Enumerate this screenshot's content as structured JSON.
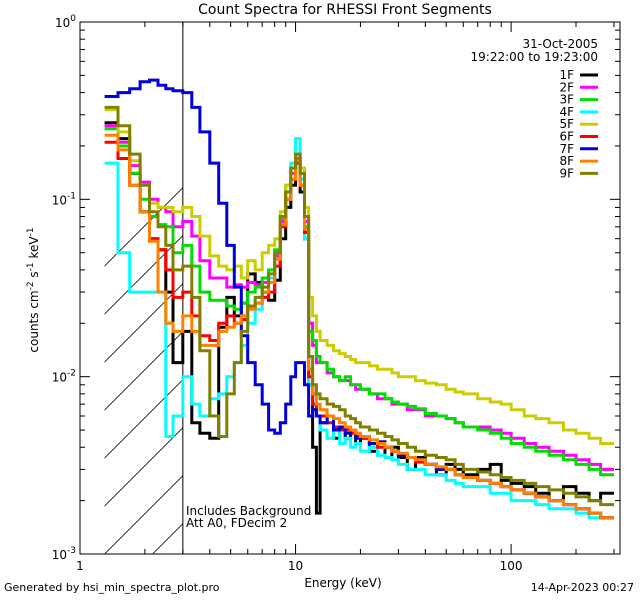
{
  "chart_data": {
    "type": "line",
    "title": "Count Spectra for RHESSI Front Segments",
    "xlabel": "Energy (keV)",
    "ylabel_base": "counts cm",
    "ylabel_exp1": "-2",
    "ylabel_mid": " s",
    "ylabel_exp2": "-1",
    "ylabel_unit": " keV",
    "ylabel_exp3": "-1",
    "xscale": "log",
    "yscale": "log",
    "xlim": [
      1,
      320
    ],
    "ylim": [
      0.001,
      1
    ],
    "x_ticks": [
      {
        "value": 1,
        "label": "1"
      },
      {
        "value": 10,
        "label": "10"
      },
      {
        "value": 100,
        "label": "100"
      }
    ],
    "y_ticks": [
      {
        "value": 1,
        "base": "10",
        "exp": "0"
      },
      {
        "value": 0.1,
        "base": "10",
        "exp": "-1"
      },
      {
        "value": 0.01,
        "base": "10",
        "exp": "-2"
      },
      {
        "value": 0.001,
        "base": "10",
        "exp": "-3"
      }
    ],
    "date": "31-Oct-2005",
    "time_range": "19:22:00 to 19:23:00",
    "shaded_region": [
      1.3,
      3.0
    ],
    "annotations": [
      "Includes Background",
      "Att A0, FDecim 2"
    ],
    "energy_edges": [
      1.3,
      1.5,
      1.7,
      1.9,
      2.1,
      2.3,
      2.5,
      2.7,
      3.0,
      3.3,
      3.6,
      4.0,
      4.4,
      4.8,
      5.2,
      5.6,
      6.0,
      6.5,
      7.0,
      7.5,
      8.0,
      8.5,
      9.0,
      9.5,
      10.0,
      10.5,
      11.0,
      11.5,
      12.0,
      12.5,
      13.0,
      14.0,
      15.0,
      16.0,
      17.0,
      18.0,
      19.0,
      20.0,
      22.0,
      24.0,
      26.0,
      28.0,
      30.0,
      33.0,
      36.0,
      40.0,
      45.0,
      50.0,
      55.0,
      60.0,
      70.0,
      80.0,
      90.0,
      100.0,
      115.0,
      130.0,
      150.0,
      175.0,
      200.0,
      230.0,
      260.0,
      300.0
    ],
    "series": [
      {
        "name": "1F",
        "color": "#000000",
        "values": [
          0.27,
          0.22,
          0.14,
          0.085,
          0.06,
          0.052,
          0.03,
          0.012,
          0.018,
          0.0055,
          0.0048,
          0.0045,
          0.019,
          0.028,
          0.022,
          0.026,
          0.038,
          0.034,
          0.03,
          0.027,
          0.035,
          0.06,
          0.09,
          0.12,
          0.17,
          0.11,
          0.06,
          0.009,
          0.004,
          0.0017,
          0.0055,
          0.006,
          0.0045,
          0.005,
          0.0045,
          0.005,
          0.0042,
          0.0045,
          0.0038,
          0.0042,
          0.0035,
          0.004,
          0.0035,
          0.003,
          0.0035,
          0.0032,
          0.0028,
          0.0032,
          0.003,
          0.0028,
          0.003,
          0.0032,
          0.0026,
          0.0025,
          0.0024,
          0.0022,
          0.002,
          0.0024,
          0.0022,
          0.002,
          0.0022
        ]
      },
      {
        "name": "2F",
        "color": "#ff00ff",
        "values": [
          0.26,
          0.21,
          0.155,
          0.125,
          0.1,
          0.09,
          0.085,
          0.07,
          0.075,
          0.062,
          0.045,
          0.036,
          0.036,
          0.032,
          0.033,
          0.032,
          0.034,
          0.033,
          0.034,
          0.036,
          0.048,
          0.075,
          0.11,
          0.14,
          0.17,
          0.13,
          0.075,
          0.02,
          0.015,
          0.012,
          0.012,
          0.0105,
          0.01,
          0.0095,
          0.0095,
          0.009,
          0.0085,
          0.0085,
          0.008,
          0.0075,
          0.0075,
          0.007,
          0.007,
          0.0065,
          0.0065,
          0.006,
          0.006,
          0.0058,
          0.0055,
          0.0052,
          0.0052,
          0.005,
          0.0048,
          0.0045,
          0.0042,
          0.004,
          0.0038,
          0.0036,
          0.0034,
          0.0032,
          0.003
        ]
      },
      {
        "name": "3F",
        "color": "#00dd00",
        "values": [
          0.25,
          0.2,
          0.14,
          0.1,
          0.08,
          0.072,
          0.07,
          0.05,
          0.055,
          0.042,
          0.03,
          0.027,
          0.027,
          0.025,
          0.024,
          0.026,
          0.03,
          0.032,
          0.036,
          0.04,
          0.052,
          0.078,
          0.1,
          0.13,
          0.16,
          0.12,
          0.07,
          0.018,
          0.016,
          0.013,
          0.012,
          0.011,
          0.01,
          0.0095,
          0.01,
          0.009,
          0.009,
          0.0085,
          0.008,
          0.008,
          0.0075,
          0.0072,
          0.007,
          0.0068,
          0.0066,
          0.0062,
          0.006,
          0.0058,
          0.0055,
          0.0052,
          0.005,
          0.0048,
          0.0045,
          0.0042,
          0.004,
          0.0038,
          0.0036,
          0.0034,
          0.0032,
          0.003,
          0.0028
        ]
      },
      {
        "name": "4F",
        "color": "#00ffff",
        "values": [
          0.16,
          0.05,
          0.03,
          0.03,
          0.03,
          0.03,
          0.0046,
          0.006,
          0.01,
          0.007,
          0.006,
          0.0075,
          0.008,
          0.01,
          0.012,
          0.015,
          0.02,
          0.024,
          0.03,
          0.036,
          0.05,
          0.08,
          0.12,
          0.16,
          0.22,
          0.13,
          0.06,
          0.009,
          0.007,
          0.006,
          0.005,
          0.0045,
          0.005,
          0.0042,
          0.0045,
          0.004,
          0.0042,
          0.0038,
          0.004,
          0.0036,
          0.0035,
          0.0034,
          0.0032,
          0.003,
          0.003,
          0.0028,
          0.0028,
          0.0026,
          0.0025,
          0.0024,
          0.0024,
          0.0022,
          0.0022,
          0.002,
          0.002,
          0.0019,
          0.0018,
          0.0018,
          0.0017,
          0.0016,
          0.0016
        ]
      },
      {
        "name": "5F",
        "color": "#cccc00",
        "values": [
          0.32,
          0.24,
          0.165,
          0.12,
          0.095,
          0.09,
          0.09,
          0.085,
          0.09,
          0.08,
          0.062,
          0.048,
          0.042,
          0.04,
          0.042,
          0.036,
          0.045,
          0.04,
          0.05,
          0.055,
          0.06,
          0.085,
          0.12,
          0.15,
          0.18,
          0.15,
          0.09,
          0.028,
          0.022,
          0.018,
          0.016,
          0.015,
          0.014,
          0.0135,
          0.013,
          0.0125,
          0.012,
          0.012,
          0.0115,
          0.011,
          0.011,
          0.0105,
          0.01,
          0.01,
          0.0095,
          0.0092,
          0.009,
          0.0085,
          0.0082,
          0.008,
          0.0075,
          0.0072,
          0.007,
          0.0065,
          0.006,
          0.0058,
          0.0055,
          0.005,
          0.0048,
          0.0045,
          0.0042
        ]
      },
      {
        "name": "6F",
        "color": "#ff0000",
        "values": [
          0.21,
          0.17,
          0.12,
          0.085,
          0.06,
          0.052,
          0.04,
          0.028,
          0.03,
          0.022,
          0.017,
          0.016,
          0.02,
          0.022,
          0.02,
          0.021,
          0.025,
          0.026,
          0.028,
          0.03,
          0.042,
          0.07,
          0.1,
          0.13,
          0.16,
          0.12,
          0.065,
          0.01,
          0.007,
          0.006,
          0.006,
          0.0055,
          0.0052,
          0.005,
          0.005,
          0.0048,
          0.0046,
          0.0045,
          0.0042,
          0.004,
          0.004,
          0.0038,
          0.0036,
          0.0035,
          0.0033,
          0.0032,
          0.003,
          0.003,
          0.0028,
          0.0027,
          0.0026,
          0.0025,
          0.0024,
          0.0023,
          0.0022,
          0.0021,
          0.002,
          0.0019,
          0.0018,
          0.0017,
          0.0016
        ]
      },
      {
        "name": "7F",
        "color": "#0000dd",
        "values": [
          0.38,
          0.4,
          0.42,
          0.46,
          0.47,
          0.44,
          0.42,
          0.41,
          0.4,
          0.33,
          0.24,
          0.16,
          0.095,
          0.055,
          0.032,
          0.017,
          0.012,
          0.009,
          0.007,
          0.005,
          0.0048,
          0.0055,
          0.007,
          0.01,
          0.012,
          0.012,
          0.009,
          0.006,
          0.0065,
          0.006,
          0.0055,
          0.006,
          0.005,
          0.0052,
          0.0048,
          0.005,
          0.0045,
          0.0046,
          0.0042,
          0.0043,
          0.004,
          0.0038,
          0.0036,
          0.0035,
          0.0034,
          0.0032,
          0.003,
          0.003,
          0.0028,
          0.0027,
          0.0026,
          0.0025,
          0.0024,
          0.0023,
          0.0022,
          0.0021,
          0.002,
          0.0019,
          0.0018,
          0.0017,
          0.0016
        ]
      },
      {
        "name": "8F",
        "color": "#ff8000",
        "values": [
          0.23,
          0.19,
          0.12,
          0.085,
          0.058,
          0.03,
          0.02,
          0.018,
          0.022,
          0.018,
          0.015,
          0.015,
          0.018,
          0.019,
          0.02,
          0.022,
          0.024,
          0.026,
          0.03,
          0.034,
          0.046,
          0.072,
          0.1,
          0.13,
          0.165,
          0.12,
          0.068,
          0.011,
          0.008,
          0.007,
          0.0065,
          0.006,
          0.0058,
          0.0055,
          0.0052,
          0.005,
          0.0048,
          0.0046,
          0.0044,
          0.0042,
          0.004,
          0.0038,
          0.0037,
          0.0035,
          0.0034,
          0.0032,
          0.0031,
          0.003,
          0.0028,
          0.0027,
          0.0026,
          0.0025,
          0.0024,
          0.0023,
          0.0022,
          0.0021,
          0.002,
          0.0019,
          0.0018,
          0.0017,
          0.0016
        ]
      },
      {
        "name": "9F",
        "color": "#808000",
        "values": [
          0.33,
          0.26,
          0.18,
          0.12,
          0.085,
          0.07,
          0.055,
          0.04,
          0.042,
          0.028,
          0.014,
          0.006,
          0.0046,
          0.008,
          0.012,
          0.018,
          0.025,
          0.028,
          0.032,
          0.038,
          0.05,
          0.08,
          0.11,
          0.15,
          0.18,
          0.14,
          0.08,
          0.013,
          0.009,
          0.008,
          0.0075,
          0.007,
          0.0068,
          0.0065,
          0.006,
          0.0058,
          0.0055,
          0.0052,
          0.005,
          0.0048,
          0.0046,
          0.0044,
          0.0042,
          0.004,
          0.0038,
          0.0036,
          0.0035,
          0.0034,
          0.0032,
          0.003,
          0.0029,
          0.0028,
          0.0027,
          0.0026,
          0.0025,
          0.0024,
          0.0023,
          0.0022,
          0.0021,
          0.002,
          0.0019
        ]
      }
    ]
  },
  "footer": {
    "left": "Generated by hsi_min_spectra_plot.pro",
    "right": "14-Apr-2023 00:27"
  }
}
